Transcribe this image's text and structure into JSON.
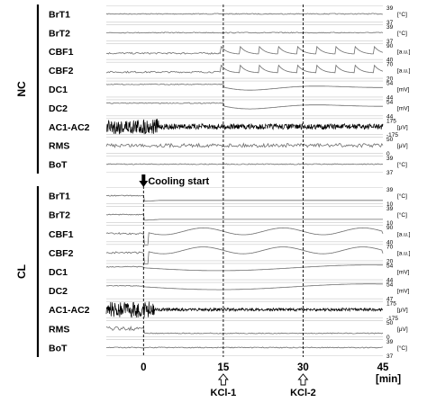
{
  "chart_data": {
    "type": "line",
    "time_axis": {
      "ticks": [
        0,
        15,
        30,
        45
      ],
      "unit": "[min]",
      "range": [
        -7,
        45
      ]
    },
    "markers": [
      {
        "t": 0,
        "label": "Cooling start",
        "panel": "CL"
      },
      {
        "t": 15,
        "label": "KCl-1"
      },
      {
        "t": 30,
        "label": "KCl-2"
      }
    ],
    "panels": [
      {
        "name": "NC",
        "channels": [
          {
            "label": "BrT1",
            "scale_top": "39",
            "unit": "[°C]",
            "scale_bottom": "37"
          },
          {
            "label": "BrT2",
            "scale_top": "39",
            "unit": "[°C]",
            "scale_bottom": "37"
          },
          {
            "label": "CBF1",
            "scale_top": "90",
            "unit": "[a.u.]",
            "scale_bottom": "40"
          },
          {
            "label": "CBF2",
            "scale_top": "70",
            "unit": "[a.u.]",
            "scale_bottom": "20"
          },
          {
            "label": "DC1",
            "scale_top": "54",
            "unit": "[mV]",
            "scale_bottom": "44"
          },
          {
            "label": "DC2",
            "scale_top": "54",
            "unit": "[mV]",
            "scale_bottom": "44"
          },
          {
            "label": "AC1-AC2",
            "scale_top": "175",
            "unit": "[µV]",
            "scale_bottom": "-175"
          },
          {
            "label": "RMS",
            "scale_top": "50",
            "unit": "[µV]",
            "scale_bottom": "0"
          },
          {
            "label": "BoT",
            "scale_top": "39",
            "unit": "[°C]",
            "scale_bottom": "37"
          }
        ]
      },
      {
        "name": "CL",
        "channels": [
          {
            "label": "BrT1",
            "scale_top": "39",
            "unit": "[°C]",
            "scale_bottom": "10"
          },
          {
            "label": "BrT2",
            "scale_top": "39",
            "unit": "[°C]",
            "scale_bottom": "10"
          },
          {
            "label": "CBF1",
            "scale_top": "90",
            "unit": "[a.u.]",
            "scale_bottom": "40"
          },
          {
            "label": "CBF2",
            "scale_top": "70",
            "unit": "[a.u.]",
            "scale_bottom": "20"
          },
          {
            "label": "DC1",
            "scale_top": "54",
            "unit": "[mV]",
            "scale_bottom": "44"
          },
          {
            "label": "DC2",
            "scale_top": "54",
            "unit": "[mV]",
            "scale_bottom": "47"
          },
          {
            "label": "AC1-AC2",
            "scale_top": "175",
            "unit": "[µV]",
            "scale_bottom": "-175"
          },
          {
            "label": "RMS",
            "scale_top": "50",
            "unit": "[µV]",
            "scale_bottom": "0"
          },
          {
            "label": "BoT",
            "scale_top": "39",
            "unit": "[°C]",
            "scale_bottom": "37"
          }
        ]
      }
    ]
  }
}
